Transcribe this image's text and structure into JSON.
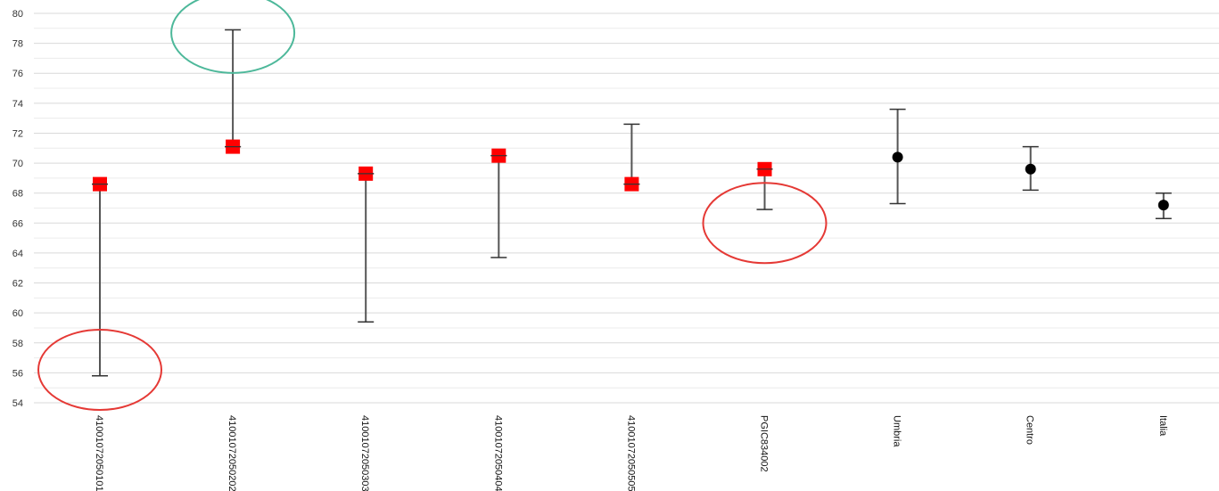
{
  "chart_data": {
    "type": "scatter",
    "title": "",
    "xlabel": "",
    "ylabel": "",
    "ylim": [
      54,
      80
    ],
    "yticks": [
      54,
      56,
      58,
      60,
      62,
      64,
      66,
      68,
      70,
      72,
      74,
      76,
      78,
      80
    ],
    "grid": "horizontal",
    "categories": [
      "41001072050101",
      "41001072050202",
      "41001072050303",
      "41001072050404",
      "41001072050505",
      "PGIC834002",
      "Umbria",
      "Centro",
      "Italia"
    ],
    "points": [
      {
        "category": "41001072050101",
        "value": 68.6,
        "low": 55.8,
        "high": 68.6,
        "marker": "square"
      },
      {
        "category": "41001072050202",
        "value": 71.1,
        "low": 71.1,
        "high": 78.9,
        "marker": "square"
      },
      {
        "category": "41001072050303",
        "value": 69.3,
        "low": 59.4,
        "high": 69.3,
        "marker": "square"
      },
      {
        "category": "41001072050404",
        "value": 70.5,
        "low": 63.7,
        "high": 70.5,
        "marker": "square"
      },
      {
        "category": "41001072050505",
        "value": 68.6,
        "low": 68.6,
        "high": 72.6,
        "marker": "square"
      },
      {
        "category": "PGIC834002",
        "value": 69.6,
        "low": 66.9,
        "high": 69.6,
        "marker": "square"
      },
      {
        "category": "Umbria",
        "value": 70.4,
        "low": 67.3,
        "high": 73.6,
        "marker": "circle"
      },
      {
        "category": "Centro",
        "value": 69.6,
        "low": 68.2,
        "high": 71.1,
        "marker": "circle"
      },
      {
        "category": "Italia",
        "value": 67.2,
        "low": 66.3,
        "high": 68.0,
        "marker": "circle"
      }
    ],
    "annotations": [
      {
        "shape": "ellipse",
        "color": "#e53935",
        "category": "41001072050101",
        "y": 56.2
      },
      {
        "shape": "ellipse",
        "color": "#4db89a",
        "category": "41001072050202",
        "y": 78.7
      },
      {
        "shape": "ellipse",
        "color": "#e53935",
        "category": "PGIC834002",
        "y": 66.0
      }
    ],
    "colors": {
      "square_marker": "#ff0000",
      "circle_marker": "#000000",
      "error_bar": "#555555",
      "grid": "#d9d9d9"
    }
  }
}
